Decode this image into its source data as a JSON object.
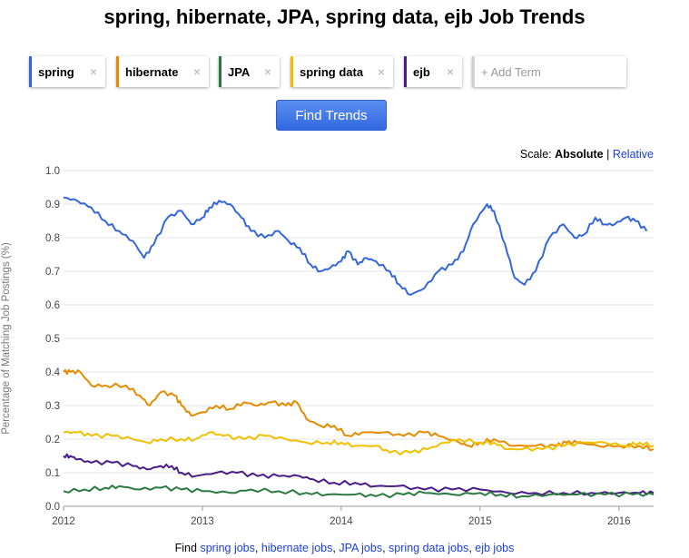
{
  "title": "spring, hibernate, JPA, spring data, ejb Job Trends",
  "terms": [
    {
      "label": "spring",
      "color": "#3366dd"
    },
    {
      "label": "hibernate",
      "color": "#e68a00"
    },
    {
      "label": "JPA",
      "color": "#2a7a3f"
    },
    {
      "label": "spring data",
      "color": "#f0c000"
    },
    {
      "label": "ejb",
      "color": "#4b1b8a"
    }
  ],
  "add_term": "+ Add Term",
  "remove_icon": "×",
  "find_button": "Find Trends",
  "scale": {
    "label": "Scale:",
    "absolute": "Absolute",
    "separator": "|",
    "relative": "Relative"
  },
  "footer": {
    "prefix": "Find",
    "links": [
      "spring jobs",
      "hibernate jobs",
      "JPA jobs",
      "spring data jobs",
      "ejb jobs"
    ],
    "sep": ","
  },
  "chart_data": {
    "type": "line",
    "title": "",
    "xlabel": "",
    "ylabel": "Percentage of Matching Job Postings (%)",
    "xlim": [
      2012.0,
      2016.25
    ],
    "ylim": [
      0,
      1.0
    ],
    "xticks": [
      "2012",
      "2013",
      "2014",
      "2015",
      "2016"
    ],
    "yticks": [
      "0.0",
      "0.1",
      "0.2",
      "0.3",
      "0.4",
      "0.5",
      "0.6",
      "0.7",
      "0.8",
      "0.9",
      "1.0"
    ],
    "grid": true,
    "series": [
      {
        "name": "spring",
        "color": "#3366dd",
        "points": [
          [
            2012.0,
            0.92
          ],
          [
            2012.1,
            0.91
          ],
          [
            2012.2,
            0.89
          ],
          [
            2012.3,
            0.85
          ],
          [
            2012.4,
            0.82
          ],
          [
            2012.5,
            0.79
          ],
          [
            2012.58,
            0.74
          ],
          [
            2012.65,
            0.78
          ],
          [
            2012.75,
            0.86
          ],
          [
            2012.85,
            0.88
          ],
          [
            2012.92,
            0.84
          ],
          [
            2013.0,
            0.86
          ],
          [
            2013.05,
            0.89
          ],
          [
            2013.12,
            0.91
          ],
          [
            2013.2,
            0.9
          ],
          [
            2013.28,
            0.86
          ],
          [
            2013.35,
            0.82
          ],
          [
            2013.45,
            0.8
          ],
          [
            2013.55,
            0.82
          ],
          [
            2013.62,
            0.79
          ],
          [
            2013.7,
            0.77
          ],
          [
            2013.78,
            0.72
          ],
          [
            2013.85,
            0.7
          ],
          [
            2013.92,
            0.71
          ],
          [
            2014.0,
            0.73
          ],
          [
            2014.05,
            0.76
          ],
          [
            2014.12,
            0.72
          ],
          [
            2014.18,
            0.74
          ],
          [
            2014.25,
            0.73
          ],
          [
            2014.35,
            0.7
          ],
          [
            2014.42,
            0.66
          ],
          [
            2014.5,
            0.63
          ],
          [
            2014.6,
            0.65
          ],
          [
            2014.7,
            0.7
          ],
          [
            2014.8,
            0.72
          ],
          [
            2014.88,
            0.76
          ],
          [
            2014.95,
            0.84
          ],
          [
            2015.05,
            0.9
          ],
          [
            2015.1,
            0.88
          ],
          [
            2015.18,
            0.78
          ],
          [
            2015.25,
            0.68
          ],
          [
            2015.32,
            0.66
          ],
          [
            2015.4,
            0.7
          ],
          [
            2015.5,
            0.8
          ],
          [
            2015.6,
            0.84
          ],
          [
            2015.68,
            0.8
          ],
          [
            2015.75,
            0.81
          ],
          [
            2015.83,
            0.86
          ],
          [
            2015.9,
            0.84
          ],
          [
            2015.97,
            0.84
          ],
          [
            2016.05,
            0.86
          ],
          [
            2016.12,
            0.85
          ],
          [
            2016.2,
            0.82
          ]
        ]
      },
      {
        "name": "hibernate",
        "color": "#e68a00",
        "points": [
          [
            2012.0,
            0.4
          ],
          [
            2012.05,
            0.4
          ],
          [
            2012.12,
            0.4
          ],
          [
            2012.2,
            0.36
          ],
          [
            2012.3,
            0.36
          ],
          [
            2012.45,
            0.36
          ],
          [
            2012.55,
            0.33
          ],
          [
            2012.62,
            0.3
          ],
          [
            2012.7,
            0.34
          ],
          [
            2012.8,
            0.33
          ],
          [
            2012.85,
            0.3
          ],
          [
            2012.92,
            0.27
          ],
          [
            2013.0,
            0.28
          ],
          [
            2013.1,
            0.3
          ],
          [
            2013.2,
            0.29
          ],
          [
            2013.3,
            0.31
          ],
          [
            2013.4,
            0.3
          ],
          [
            2013.5,
            0.31
          ],
          [
            2013.6,
            0.3
          ],
          [
            2013.68,
            0.31
          ],
          [
            2013.75,
            0.26
          ],
          [
            2013.85,
            0.24
          ],
          [
            2013.95,
            0.24
          ],
          [
            2014.05,
            0.21
          ],
          [
            2014.15,
            0.22
          ],
          [
            2014.3,
            0.22
          ],
          [
            2014.45,
            0.21
          ],
          [
            2014.6,
            0.22
          ],
          [
            2014.7,
            0.21
          ],
          [
            2014.85,
            0.19
          ],
          [
            2014.92,
            0.18
          ],
          [
            2015.0,
            0.19
          ],
          [
            2015.1,
            0.2
          ],
          [
            2015.25,
            0.18
          ],
          [
            2015.4,
            0.18
          ],
          [
            2015.55,
            0.18
          ],
          [
            2015.62,
            0.19
          ],
          [
            2015.7,
            0.19
          ],
          [
            2015.85,
            0.18
          ],
          [
            2016.0,
            0.18
          ],
          [
            2016.15,
            0.18
          ],
          [
            2016.25,
            0.17
          ]
        ]
      },
      {
        "name": "spring data",
        "color": "#f0c000",
        "points": [
          [
            2012.0,
            0.22
          ],
          [
            2012.1,
            0.22
          ],
          [
            2012.2,
            0.21
          ],
          [
            2012.35,
            0.21
          ],
          [
            2012.5,
            0.2
          ],
          [
            2012.6,
            0.19
          ],
          [
            2012.7,
            0.2
          ],
          [
            2012.85,
            0.2
          ],
          [
            2012.95,
            0.2
          ],
          [
            2013.05,
            0.22
          ],
          [
            2013.15,
            0.21
          ],
          [
            2013.3,
            0.2
          ],
          [
            2013.45,
            0.21
          ],
          [
            2013.6,
            0.2
          ],
          [
            2013.75,
            0.19
          ],
          [
            2013.9,
            0.19
          ],
          [
            2014.0,
            0.19
          ],
          [
            2014.1,
            0.18
          ],
          [
            2014.25,
            0.18
          ],
          [
            2014.35,
            0.16
          ],
          [
            2014.5,
            0.16
          ],
          [
            2014.62,
            0.17
          ],
          [
            2014.75,
            0.19
          ],
          [
            2014.85,
            0.2
          ],
          [
            2015.0,
            0.19
          ],
          [
            2015.1,
            0.19
          ],
          [
            2015.2,
            0.17
          ],
          [
            2015.3,
            0.17
          ],
          [
            2015.45,
            0.17
          ],
          [
            2015.6,
            0.18
          ],
          [
            2015.75,
            0.19
          ],
          [
            2015.9,
            0.19
          ],
          [
            2016.05,
            0.18
          ],
          [
            2016.15,
            0.19
          ],
          [
            2016.25,
            0.18
          ]
        ]
      },
      {
        "name": "ejb",
        "color": "#4b1b8a",
        "points": [
          [
            2012.0,
            0.15
          ],
          [
            2012.05,
            0.15
          ],
          [
            2012.1,
            0.14
          ],
          [
            2012.2,
            0.13
          ],
          [
            2012.35,
            0.13
          ],
          [
            2012.5,
            0.12
          ],
          [
            2012.6,
            0.11
          ],
          [
            2012.7,
            0.12
          ],
          [
            2012.78,
            0.12
          ],
          [
            2012.85,
            0.1
          ],
          [
            2012.95,
            0.09
          ],
          [
            2013.1,
            0.1
          ],
          [
            2013.25,
            0.1
          ],
          [
            2013.4,
            0.09
          ],
          [
            2013.55,
            0.09
          ],
          [
            2013.7,
            0.09
          ],
          [
            2013.8,
            0.08
          ],
          [
            2013.95,
            0.07
          ],
          [
            2014.1,
            0.07
          ],
          [
            2014.25,
            0.06
          ],
          [
            2014.4,
            0.06
          ],
          [
            2014.6,
            0.05
          ],
          [
            2014.8,
            0.05
          ],
          [
            2015.0,
            0.05
          ],
          [
            2015.2,
            0.04
          ],
          [
            2015.4,
            0.04
          ],
          [
            2015.6,
            0.04
          ],
          [
            2015.8,
            0.04
          ],
          [
            2016.0,
            0.04
          ],
          [
            2016.15,
            0.04
          ],
          [
            2016.25,
            0.04
          ]
        ]
      },
      {
        "name": "JPA",
        "color": "#2a7a3f",
        "points": [
          [
            2012.0,
            0.045
          ],
          [
            2012.15,
            0.05
          ],
          [
            2012.3,
            0.055
          ],
          [
            2012.4,
            0.06
          ],
          [
            2012.55,
            0.05
          ],
          [
            2012.7,
            0.055
          ],
          [
            2012.85,
            0.05
          ],
          [
            2013.0,
            0.045
          ],
          [
            2013.2,
            0.04
          ],
          [
            2013.35,
            0.05
          ],
          [
            2013.55,
            0.045
          ],
          [
            2013.75,
            0.04
          ],
          [
            2013.9,
            0.035
          ],
          [
            2014.1,
            0.035
          ],
          [
            2014.25,
            0.03
          ],
          [
            2014.45,
            0.035
          ],
          [
            2014.6,
            0.04
          ],
          [
            2014.8,
            0.035
          ],
          [
            2015.0,
            0.04
          ],
          [
            2015.15,
            0.035
          ],
          [
            2015.3,
            0.03
          ],
          [
            2015.5,
            0.035
          ],
          [
            2015.7,
            0.035
          ],
          [
            2015.9,
            0.035
          ],
          [
            2016.1,
            0.035
          ],
          [
            2016.25,
            0.035
          ]
        ]
      }
    ]
  }
}
